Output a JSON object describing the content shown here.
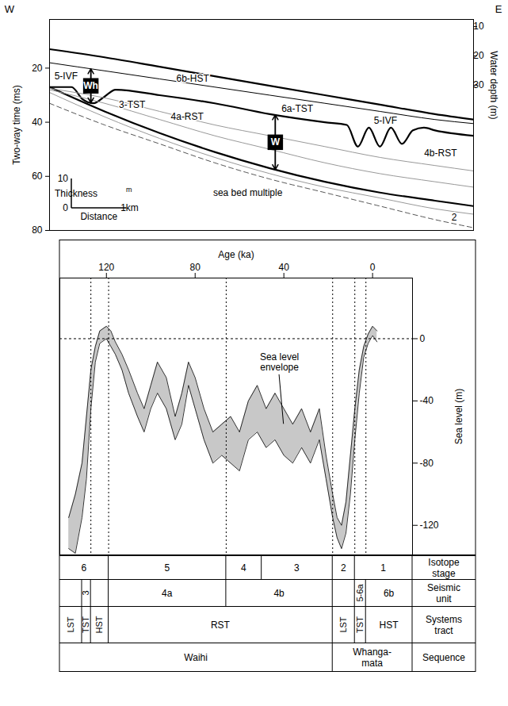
{
  "chart_data": [
    {
      "type": "profile",
      "direction_labels": [
        "W",
        "E"
      ],
      "ylabel": "Two-way time (ms)",
      "ylim": [
        80,
        2
      ],
      "yticks": [
        20,
        40,
        60,
        80
      ],
      "y2label": "Water depth (m)",
      "y2lim": [
        79.5,
        7.4
      ],
      "y2ticks": [
        10,
        20,
        30
      ],
      "xlim": [
        0,
        7.7
      ],
      "tick_labels": "y",
      "series": [
        {
          "x": [
            0,
            1,
            2,
            3,
            4,
            5,
            6,
            7,
            7.7
          ],
          "values": [
            13,
            16,
            19.5,
            23,
            26.5,
            30,
            33.5,
            37,
            39
          ],
          "color": "#000000",
          "line_style": "bold"
        },
        {
          "x": [
            0,
            1,
            2,
            3,
            4,
            5,
            6,
            7,
            7.7
          ],
          "values": [
            18,
            21,
            24,
            27,
            30,
            33,
            36,
            39,
            40.5
          ],
          "color": "#000000",
          "line_style": "thin"
        },
        {
          "x": [
            0,
            0.4,
            0.6,
            0.8,
            1.0,
            1.2,
            2,
            3,
            4,
            5,
            5.4,
            5.6,
            5.8,
            6.0,
            6.2,
            6.4,
            6.6,
            6.8,
            7,
            7.7
          ],
          "values": [
            27,
            27,
            31.5,
            33,
            30.5,
            28,
            30,
            33,
            37,
            40,
            41,
            49,
            42,
            49,
            42,
            48,
            43,
            42,
            43,
            45
          ],
          "color": "#000000",
          "line_style": "bold"
        },
        {
          "x": [
            0,
            1,
            2,
            3,
            4,
            5,
            6,
            7,
            7.7
          ],
          "values": [
            27,
            36,
            44,
            51,
            57,
            62,
            66,
            69,
            71
          ],
          "color": "#000000",
          "line_style": "bold"
        },
        {
          "x": [
            0,
            1,
            2,
            3,
            4,
            5,
            6,
            7,
            7.7
          ],
          "values": [
            33,
            41,
            48,
            55,
            61,
            66,
            71,
            76,
            79
          ],
          "color": "#555555",
          "line_style": "dashed"
        },
        {
          "x": [
            0,
            1,
            2,
            3,
            4,
            5,
            6,
            7,
            7.7
          ],
          "values": [
            27.5,
            31,
            36,
            41,
            45,
            49,
            53,
            56,
            58
          ],
          "color": "#999999",
          "line_style": "thin"
        },
        {
          "x": [
            0,
            1,
            2,
            3,
            4,
            5,
            6,
            7,
            7.7
          ],
          "values": [
            28,
            33,
            39,
            45,
            50,
            55,
            59,
            62,
            64
          ],
          "color": "#999999",
          "line_style": "thin"
        },
        {
          "x": [
            0,
            1,
            2,
            3,
            4,
            5,
            6,
            7,
            7.7
          ],
          "values": [
            29,
            38,
            46,
            53,
            59,
            64,
            68,
            72,
            74
          ],
          "color": "#999999",
          "line_style": "thin"
        }
      ],
      "annotations": [
        {
          "text": "6b-HST",
          "x": 2.6,
          "y": 23.8
        },
        {
          "text": "5-IVF",
          "x": 0.3,
          "y": 23
        },
        {
          "text": "3-TST",
          "x": 1.5,
          "y": 33.5
        },
        {
          "text": "4a-RST",
          "x": 2.5,
          "y": 38
        },
        {
          "text": "6a-TST",
          "x": 4.5,
          "y": 35
        },
        {
          "text": "5-IVF",
          "x": 6.1,
          "y": 39.5
        },
        {
          "text": "4b-RST",
          "x": 7.1,
          "y": 51.5
        },
        {
          "text": "2",
          "x": 7.35,
          "y": 75.2
        },
        {
          "text": "sea bed multiple",
          "x": 3.6,
          "y": 66
        }
      ],
      "thickness_markers": [
        {
          "label": "Wh",
          "x": 0.75,
          "y1": 20.3,
          "y2": 32.8
        },
        {
          "label": "W",
          "x": 4.1,
          "y1": 37.3,
          "y2": 57.5
        }
      ],
      "scale_bar": {
        "thickness_label": "Thickness",
        "thickness_unit": "m",
        "thickness_ticks": [
          0,
          10
        ],
        "distance_label": "Distance",
        "distance": 1,
        "distance_text": "1km"
      }
    },
    {
      "type": "area",
      "xlabel": "Age (ka)",
      "ylabel": "Sea level (m)",
      "xlim": [
        141,
        -18
      ],
      "xticks": [
        120,
        80,
        40,
        0
      ],
      "ylim": [
        -139,
        39
      ],
      "yticks": [
        -120,
        -80,
        -40,
        0
      ],
      "color": "#c8c8c8",
      "x": [
        137,
        134,
        131,
        129,
        127,
        125,
        123,
        120,
        118,
        116,
        113,
        110,
        106,
        103,
        100,
        97,
        93,
        89,
        86,
        83,
        80,
        76,
        72,
        68,
        64,
        60,
        56,
        52,
        48,
        44,
        40,
        36,
        32,
        28,
        24,
        21,
        18,
        16,
        14,
        12,
        10,
        8,
        6,
        4,
        2,
        0,
        -2
      ],
      "upper": [
        -115,
        -100,
        -80,
        -50,
        -20,
        -5,
        5,
        8,
        5,
        -2,
        -10,
        -20,
        -35,
        -45,
        -30,
        -15,
        -25,
        -50,
        -35,
        -15,
        -25,
        -45,
        -60,
        -55,
        -50,
        -60,
        -40,
        -30,
        -45,
        -35,
        -45,
        -55,
        -45,
        -60,
        -45,
        -75,
        -100,
        -115,
        -120,
        -105,
        -75,
        -45,
        -20,
        -5,
        3,
        8,
        5
      ],
      "lower": [
        -135,
        -138,
        -115,
        -90,
        -45,
        -15,
        -3,
        0,
        -5,
        -10,
        -20,
        -35,
        -50,
        -60,
        -45,
        -35,
        -45,
        -65,
        -55,
        -30,
        -45,
        -65,
        -80,
        -75,
        -80,
        -85,
        -65,
        -60,
        -70,
        -65,
        -75,
        -80,
        -70,
        -80,
        -65,
        -90,
        -115,
        -128,
        -135,
        -125,
        -100,
        -65,
        -35,
        -12,
        -3,
        2,
        -2
      ],
      "reference_lines": {
        "y": [
          0
        ],
        "x": [
          127,
          119,
          66,
          18,
          8,
          3
        ]
      },
      "annotations": [
        {
          "text": "Sea level envelope",
          "x": 42,
          "y": -15,
          "pointer_x": 40,
          "pointer_y": -55
        }
      ],
      "table": {
        "rows": [
          {
            "title": "Isotope stage",
            "cells": [
              {
                "label": "6",
                "from": 141,
                "to": 119
              },
              {
                "label": "5",
                "from": 119,
                "to": 66
              },
              {
                "label": "4",
                "from": 66,
                "to": 50
              },
              {
                "label": "3",
                "from": 50,
                "to": 18
              },
              {
                "label": "2",
                "from": 18,
                "to": 8
              },
              {
                "label": "1",
                "from": 8,
                "to": -18
              }
            ]
          },
          {
            "title": "Seismic unit",
            "cells": [
              {
                "label": null,
                "from": 141,
                "to": 131
              },
              {
                "label": "3",
                "from": 131,
                "to": 127
              },
              {
                "label": null,
                "from": 127,
                "to": 119
              },
              {
                "label": "4a",
                "from": 119,
                "to": 66
              },
              {
                "label": "4b",
                "from": 66,
                "to": 18
              },
              {
                "label": null,
                "from": 18,
                "to": 8
              },
              {
                "label": "5-6a",
                "from": 8,
                "to": 3
              },
              {
                "label": "6b",
                "from": 3,
                "to": -18
              }
            ]
          },
          {
            "title": "Systems tract",
            "cells": [
              {
                "label": "LST",
                "from": 141,
                "to": 131
              },
              {
                "label": "TST",
                "from": 131,
                "to": 127
              },
              {
                "label": "HST",
                "from": 127,
                "to": 119
              },
              {
                "label": "RST",
                "from": 119,
                "to": 18
              },
              {
                "label": "LST",
                "from": 18,
                "to": 8
              },
              {
                "label": "TST",
                "from": 8,
                "to": 3
              },
              {
                "label": "HST",
                "from": 3,
                "to": -18
              }
            ]
          },
          {
            "title": "Sequence",
            "cells": [
              {
                "label": "Waihi",
                "from": 141,
                "to": 18
              },
              {
                "label": "Whanga-mata",
                "from": 18,
                "to": -18
              }
            ]
          }
        ]
      }
    }
  ]
}
